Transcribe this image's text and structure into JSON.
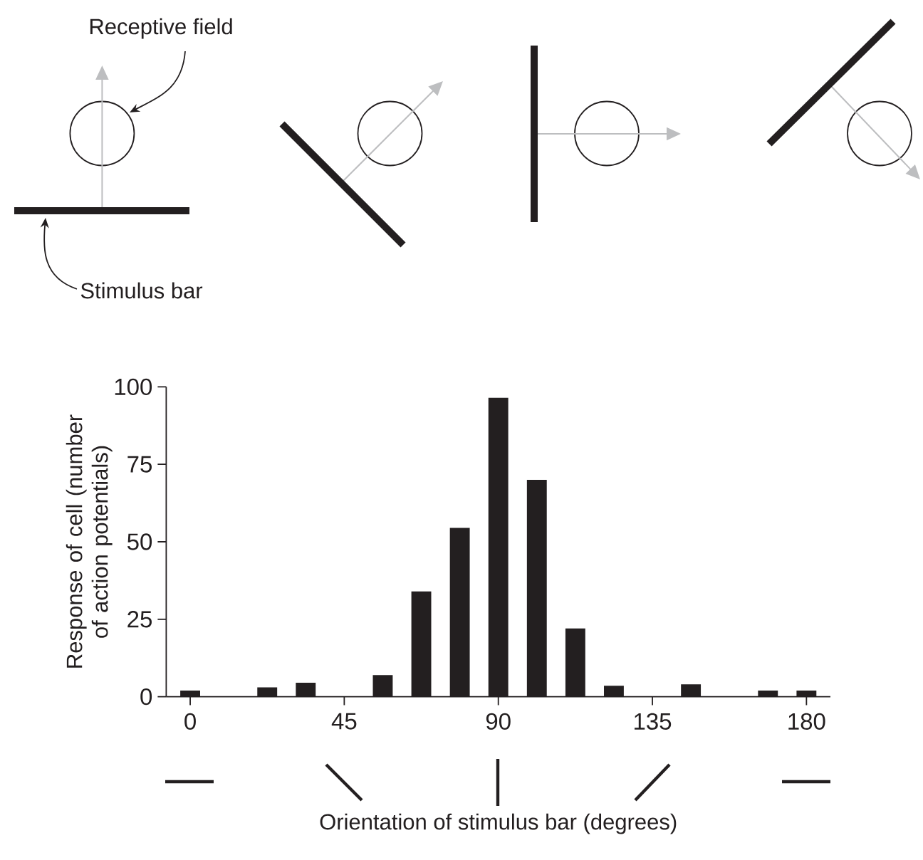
{
  "chart_data": {
    "type": "bar",
    "xlabel": "Orientation of stimulus bar (degrees)",
    "ylabel": "Response of cell (number of action potentials)",
    "x": [
      0,
      22.5,
      33.75,
      56.25,
      67.5,
      78.75,
      90,
      101.25,
      112.5,
      123.75,
      146.25,
      168.75,
      180
    ],
    "values": [
      2,
      3,
      4.5,
      7,
      34,
      54.5,
      96.5,
      70,
      22,
      3.5,
      4,
      2,
      2
    ],
    "color": "#231f20",
    "xlim": [
      -7,
      187
    ],
    "xticks": [
      0,
      45,
      90,
      135,
      180
    ],
    "ylim": [
      0,
      100
    ],
    "yticks": [
      0,
      25,
      50,
      75,
      100
    ],
    "annotations": [
      "Receptive field",
      "Stimulus bar"
    ]
  }
}
